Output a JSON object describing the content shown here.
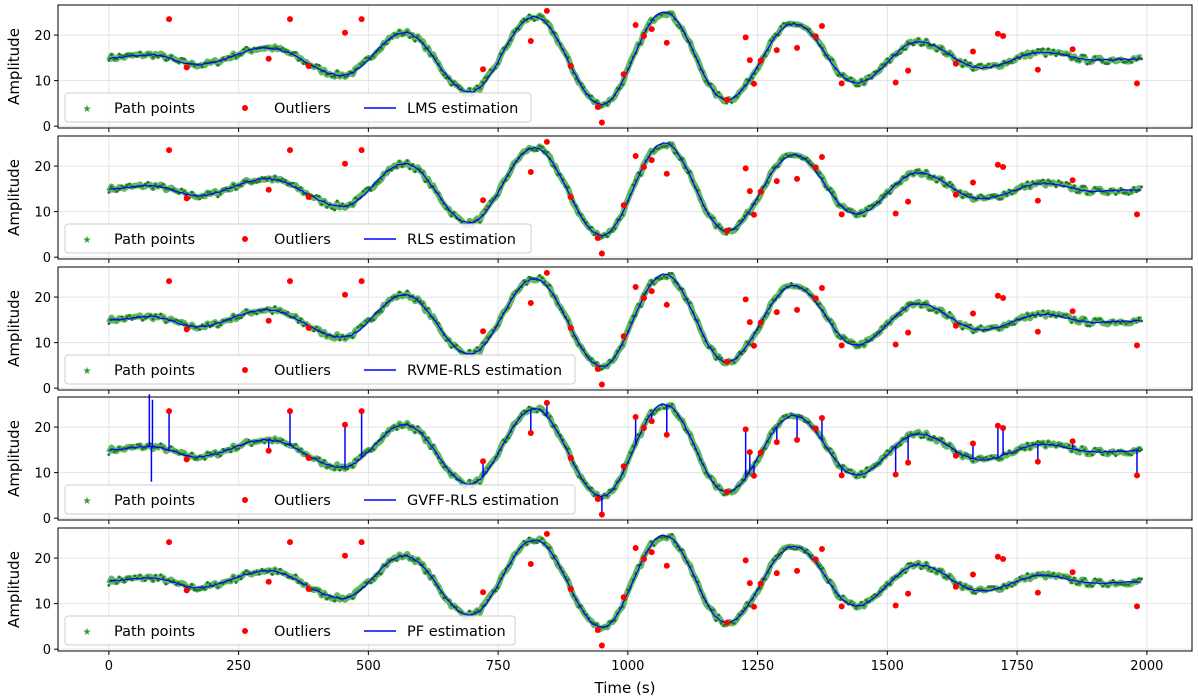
{
  "chart_data": {
    "type": "scatter",
    "xlabel": "Time (s)",
    "ylabel": "Amplitude",
    "xlim": [
      -98,
      2087
    ],
    "ylim": [
      -0.4,
      26.6
    ],
    "xticks": [
      0,
      250,
      500,
      750,
      1000,
      1250,
      1500,
      1750,
      2000
    ],
    "yticks": [
      0,
      10,
      20
    ],
    "grid": true,
    "legend_placement": "lower-left",
    "legend": {
      "path": "Path points",
      "outliers": "Outliers"
    },
    "colors": {
      "path": "#2ca02c",
      "outliers": "#ff0000",
      "estimate": "#0000ff"
    },
    "path_keypoints": [
      [
        0,
        15
      ],
      [
        80,
        15.7
      ],
      [
        170,
        13.5
      ],
      [
        305,
        17.2
      ],
      [
        450,
        11.2
      ],
      [
        570,
        20.5
      ],
      [
        695,
        7.5
      ],
      [
        820,
        24
      ],
      [
        950,
        4.8
      ],
      [
        1070,
        25
      ],
      [
        1190,
        5.8
      ],
      [
        1320,
        22.5
      ],
      [
        1440,
        9.5
      ],
      [
        1560,
        18.5
      ],
      [
        1680,
        12.8
      ],
      [
        1800,
        16.2
      ],
      [
        1900,
        14.5
      ],
      [
        1990,
        14.8
      ]
    ],
    "outliers": [
      [
        116,
        23.5
      ],
      [
        150,
        12.9
      ],
      [
        308,
        14.8
      ],
      [
        349,
        23.5
      ],
      [
        385,
        13.2
      ],
      [
        455,
        20.5
      ],
      [
        487,
        23.5
      ],
      [
        721,
        12.5
      ],
      [
        813,
        18.7
      ],
      [
        844,
        25.3
      ],
      [
        890,
        13.2
      ],
      [
        942,
        4.2
      ],
      [
        950,
        0.8
      ],
      [
        992,
        11.4
      ],
      [
        1015,
        22.2
      ],
      [
        1031,
        19.8
      ],
      [
        1046,
        21.3
      ],
      [
        1075,
        18.3
      ],
      [
        1191,
        5.8
      ],
      [
        1227,
        19.5
      ],
      [
        1235,
        14.5
      ],
      [
        1243,
        9.3
      ],
      [
        1256,
        14.4
      ],
      [
        1287,
        16.7
      ],
      [
        1326,
        17.2
      ],
      [
        1362,
        19.7
      ],
      [
        1374,
        22
      ],
      [
        1412,
        9.4
      ],
      [
        1516,
        9.6
      ],
      [
        1540,
        12.2
      ],
      [
        1632,
        13.7
      ],
      [
        1665,
        16.4
      ],
      [
        1713,
        20.3
      ],
      [
        1723,
        19.8
      ],
      [
        1790,
        12.4
      ],
      [
        1857,
        16.9
      ],
      [
        1981,
        9.4
      ]
    ],
    "series": [
      {
        "name": "LMS estimation"
      },
      {
        "name": "RLS estimation"
      },
      {
        "name": "RVME-RLS estimation"
      },
      {
        "name": "GVFF-RLS estimation",
        "extra_spikes": [
          [
            78,
            27.2
          ],
          [
            82,
            8
          ],
          [
            84,
            26
          ]
        ]
      },
      {
        "name": "PF estimation"
      }
    ]
  }
}
